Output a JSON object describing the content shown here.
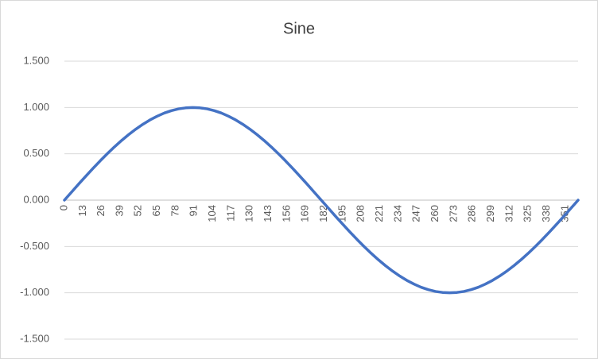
{
  "chart_data": {
    "type": "line",
    "title": "Sine",
    "x": [
      0,
      5,
      10,
      15,
      20,
      25,
      30,
      35,
      40,
      45,
      50,
      55,
      60,
      65,
      70,
      75,
      80,
      85,
      90,
      95,
      100,
      105,
      110,
      115,
      120,
      125,
      130,
      135,
      140,
      145,
      150,
      155,
      160,
      165,
      170,
      175,
      180,
      185,
      190,
      195,
      200,
      205,
      210,
      215,
      220,
      225,
      230,
      235,
      240,
      245,
      250,
      255,
      260,
      265,
      270,
      275,
      280,
      285,
      290,
      295,
      300,
      305,
      310,
      315,
      320,
      325,
      330,
      335,
      340,
      345,
      350,
      355,
      360
    ],
    "values": [
      0,
      0.087,
      0.174,
      0.259,
      0.342,
      0.423,
      0.5,
      0.574,
      0.643,
      0.707,
      0.766,
      0.819,
      0.866,
      0.906,
      0.94,
      0.966,
      0.985,
      0.996,
      1,
      0.996,
      0.985,
      0.966,
      0.94,
      0.906,
      0.866,
      0.819,
      0.766,
      0.707,
      0.643,
      0.574,
      0.5,
      0.423,
      0.342,
      0.259,
      0.174,
      0.087,
      0,
      -0.087,
      -0.174,
      -0.259,
      -0.342,
      -0.423,
      -0.5,
      -0.574,
      -0.643,
      -0.707,
      -0.766,
      -0.819,
      -0.866,
      -0.906,
      -0.94,
      -0.966,
      -0.985,
      -0.996,
      -1,
      -0.996,
      -0.985,
      -0.966,
      -0.94,
      -0.906,
      -0.866,
      -0.819,
      -0.766,
      -0.707,
      -0.643,
      -0.574,
      -0.5,
      -0.423,
      -0.342,
      -0.259,
      -0.174,
      -0.087,
      0
    ],
    "color": "#4472c4",
    "xlim": [
      0,
      360
    ],
    "xticks": [
      0,
      13,
      26,
      39,
      52,
      65,
      78,
      91,
      104,
      117,
      130,
      143,
      156,
      169,
      182,
      195,
      208,
      221,
      234,
      247,
      260,
      273,
      286,
      299,
      312,
      325,
      338,
      351
    ],
    "ylim": [
      -1.5,
      1.5
    ],
    "yticks": [
      {
        "value": -1.5,
        "label": "-1.500"
      },
      {
        "value": -1,
        "label": "-1.000"
      },
      {
        "value": -0.5,
        "label": "-0.500"
      },
      {
        "value": 0,
        "label": "0.000"
      },
      {
        "value": 0.5,
        "label": "0.500"
      },
      {
        "value": 1,
        "label": "1.000"
      },
      {
        "value": 1.5,
        "label": "1.500"
      }
    ],
    "grid": true
  }
}
